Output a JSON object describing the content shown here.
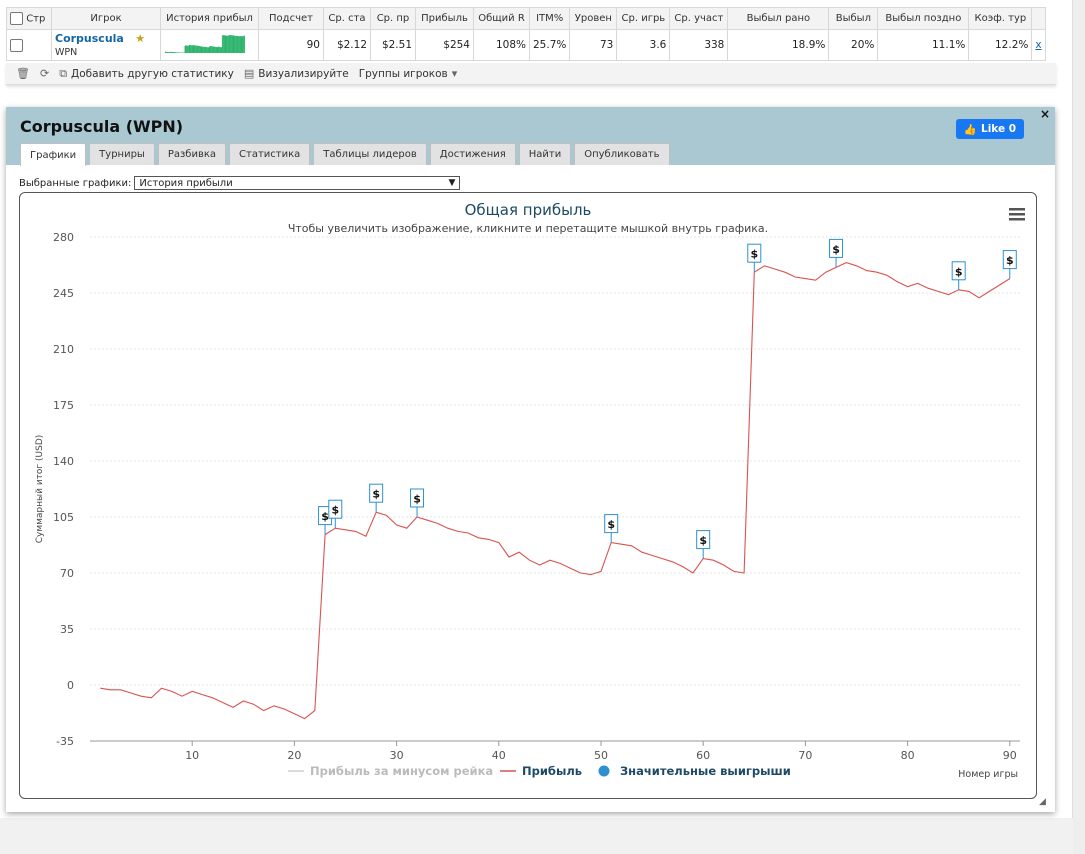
{
  "stats_table": {
    "headers": [
      "Стр",
      "Игрок",
      "История прибыл",
      "Подсчет",
      "Ср. ста",
      "Ср. пр",
      "Прибыль",
      "Общий R",
      "ITM%",
      "Уровен",
      "Ср. игрь",
      "Ср. участ",
      "Выбыл рано",
      "Выбыл",
      "Выбыл поздно",
      "Коэф. тур"
    ],
    "row": {
      "player_name": "Corpuscula",
      "network": "WPN",
      "count": "90",
      "avg_stake": "$2.12",
      "avg_profit": "$2.51",
      "profit": "$254",
      "total_roi": "108%",
      "itm": "25.7%",
      "level": "73",
      "avg_players": "3.6",
      "avg_entrants": "338",
      "early_out": "18.9%",
      "mid_out": "20%",
      "late_out": "11.1%",
      "coef": "12.2%",
      "remove_link": "x"
    }
  },
  "toolbar": {
    "add_stat": "Добавить другую статистику",
    "visualize": "Визуализируйте",
    "player_groups": "Группы игроков"
  },
  "panel": {
    "title": "Corpuscula (WPN)",
    "like_label": "Like 0",
    "close": "×",
    "tabs": [
      "Графики",
      "Турниры",
      "Разбивка",
      "Статистика",
      "Таблицы лидеров",
      "Достижения",
      "Найти",
      "Опубликовать"
    ],
    "select_label": "Выбранные графики:",
    "select_value": "История прибыли"
  },
  "colors": {
    "header_bg": "#a9c8d2",
    "line": "#d9534f",
    "marker": "#2e90d0",
    "like": "#1877f2",
    "mini_chart": "#2db36b"
  },
  "chart_data": {
    "type": "line",
    "title": "Общая прибыль",
    "subtitle": "Чтобы увеличить изображение, кликните и перетащите мышкой внутрь графика.",
    "xlabel": "Номер игры",
    "ylabel": "Суммарный итог (USD)",
    "xlim": [
      0,
      91
    ],
    "ylim": [
      -35,
      280
    ],
    "xticks": [
      10,
      20,
      30,
      40,
      50,
      60,
      70,
      80,
      90
    ],
    "yticks": [
      -35,
      0,
      35,
      70,
      105,
      140,
      175,
      210,
      245,
      280
    ],
    "grid": true,
    "legend": [
      "Прибыль за минусом рейка",
      "Прибыль",
      "Значительные выигрыши"
    ],
    "series": [
      {
        "name": "Прибыль",
        "x": [
          1,
          2,
          3,
          4,
          5,
          6,
          7,
          8,
          9,
          10,
          11,
          12,
          13,
          14,
          15,
          16,
          17,
          18,
          19,
          20,
          21,
          22,
          23,
          24,
          25,
          26,
          27,
          28,
          29,
          30,
          31,
          32,
          33,
          34,
          35,
          36,
          37,
          38,
          39,
          40,
          41,
          42,
          43,
          44,
          45,
          46,
          47,
          48,
          49,
          50,
          51,
          52,
          53,
          54,
          55,
          56,
          57,
          58,
          59,
          60,
          61,
          62,
          63,
          64,
          65,
          66,
          67,
          68,
          69,
          70,
          71,
          72,
          73,
          74,
          75,
          76,
          77,
          78,
          79,
          80,
          81,
          82,
          83,
          84,
          85,
          86,
          87,
          88,
          89,
          90
        ],
        "y": [
          -2,
          -3,
          -3,
          -5,
          -7,
          -8,
          -2,
          -4,
          -7,
          -4,
          -6,
          -8,
          -11,
          -14,
          -10,
          -12,
          -16,
          -13,
          -15,
          -18,
          -21,
          -16,
          94,
          98,
          97,
          96,
          93,
          108,
          106,
          100,
          98,
          105,
          103,
          101,
          98,
          96,
          95,
          92,
          91,
          89,
          80,
          83,
          78,
          75,
          78,
          76,
          73,
          70,
          69,
          71,
          89,
          88,
          87,
          83,
          81,
          79,
          77,
          74,
          70,
          79,
          78,
          75,
          71,
          70,
          258,
          262,
          260,
          258,
          255,
          254,
          253,
          258,
          261,
          264,
          262,
          259,
          258,
          256,
          252,
          249,
          251,
          248,
          246,
          244,
          247,
          246,
          242,
          246,
          250,
          254
        ]
      },
      {
        "name": "Значительные выигрыши",
        "x": [
          23,
          24,
          28,
          32,
          51,
          60,
          65,
          73,
          85,
          90
        ],
        "y": [
          94,
          98,
          108,
          105,
          89,
          79,
          258,
          261,
          247,
          254
        ]
      }
    ]
  }
}
